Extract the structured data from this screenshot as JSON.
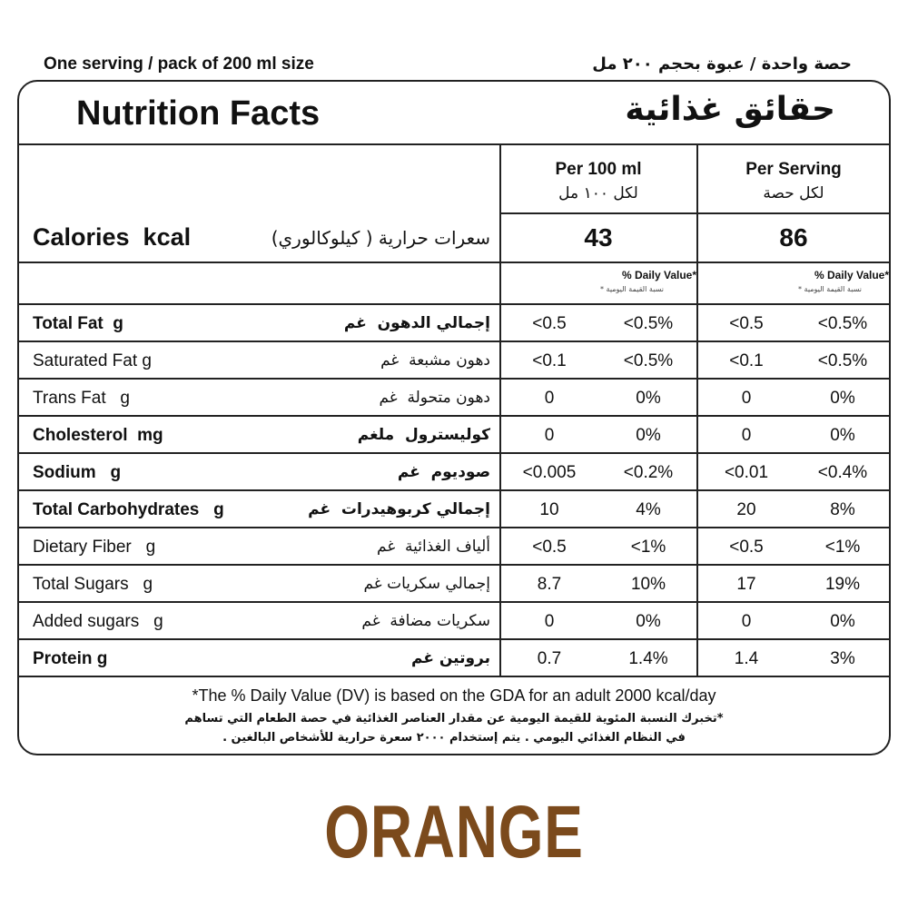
{
  "header": {
    "serving_en": "One serving / pack of 200 ml size",
    "serving_ar": "حصة واحدة / عبوة بحجم ٢٠٠ مل"
  },
  "title": {
    "en": "Nutrition Facts",
    "ar": "حقائق غذائية"
  },
  "columns": [
    {
      "en": "Per 100 ml",
      "ar": "لكل ١٠٠ مل"
    },
    {
      "en": "Per Serving",
      "ar": "لكل حصة"
    }
  ],
  "calories": {
    "en": "Calories  kcal",
    "ar": "سعرات حرارية ( كيلوكالوري)",
    "values": [
      "43",
      "86"
    ]
  },
  "daily_value_header": {
    "en": "% Daily Value*",
    "ar": "نسبة القيمة اليومية *"
  },
  "rows": [
    {
      "en": "Total Fat  g",
      "ar": "إجمالي الدهون  غم",
      "bold": true,
      "cells": [
        "<0.5",
        "<0.5%",
        "<0.5",
        "<0.5%"
      ]
    },
    {
      "en": "Saturated Fat g",
      "ar": "دهون مشبعة  غم",
      "bold": false,
      "cells": [
        "<0.1",
        "<0.5%",
        "<0.1",
        "<0.5%"
      ]
    },
    {
      "en": "Trans Fat   g",
      "ar": "دهون متحولة  غم",
      "bold": false,
      "cells": [
        "0",
        "0%",
        "0",
        "0%"
      ]
    },
    {
      "en": "Cholesterol  mg",
      "ar": "كوليسترول  ملغم",
      "bold": true,
      "cells": [
        "0",
        "0%",
        "0",
        "0%"
      ]
    },
    {
      "en": "Sodium   g",
      "ar": "صوديوم  غم",
      "bold": true,
      "cells": [
        "<0.005",
        "<0.2%",
        "<0.01",
        "<0.4%"
      ]
    },
    {
      "en": "Total Carbohydrates   g",
      "ar": "إجمالي كربوهيدرات  غم",
      "bold": true,
      "cells": [
        "10",
        "4%",
        "20",
        "8%"
      ]
    },
    {
      "en": "Dietary Fiber   g",
      "ar": "ألياف الغذائية  غم",
      "bold": false,
      "cells": [
        "<0.5",
        "<1%",
        "<0.5",
        "<1%"
      ]
    },
    {
      "en": "Total Sugars   g",
      "ar": "إجمالي سكريات غم",
      "bold": false,
      "cells": [
        "8.7",
        "10%",
        "17",
        "19%"
      ]
    },
    {
      "en": "Added sugars   g",
      "ar": "سكريات مضافة  غم",
      "bold": false,
      "cells": [
        "0",
        "0%",
        "0",
        "0%"
      ]
    },
    {
      "en": "Protein g",
      "ar": "بروتين غم",
      "bold": true,
      "cells": [
        "0.7",
        "1.4%",
        "1.4",
        "3%"
      ]
    }
  ],
  "footnote": {
    "en": "*The % Daily Value (DV) is based on the GDA for an adult 2000 kcal/day",
    "ar": [
      "*تخبرك النسبة المئوية للقيمة اليومية عن مقدار العناصر الغذائية في حصة الطعام التي تساهم",
      "في النظام الغذائي اليومي . يتم إستخدام ٢٠٠٠ سعرة حرارية للأشخاص البالغين ."
    ]
  },
  "product": "ORANGE"
}
